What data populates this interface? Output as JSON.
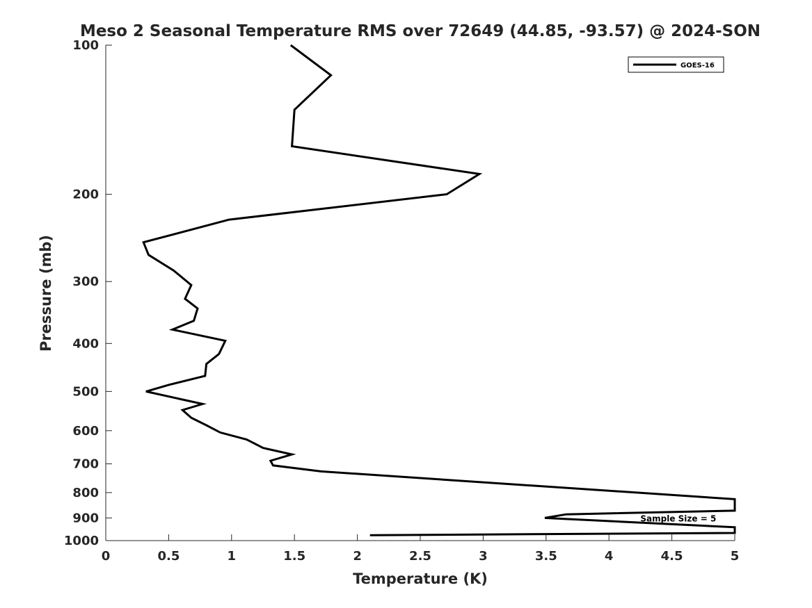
{
  "chart_data": {
    "type": "line",
    "title": "Meso 2 Seasonal Temperature RMS over 72649 (44.85, -93.57) @ 2024-SON",
    "xlabel": "Temperature (K)",
    "ylabel": "Pressure (mb)",
    "xlim": [
      0,
      5
    ],
    "ylim": [
      100,
      1000
    ],
    "y_scale": "log",
    "y_reversed": true,
    "grid": false,
    "legend_position": "top-right",
    "x_ticks": [
      0,
      0.5,
      1,
      1.5,
      2,
      2.5,
      3,
      3.5,
      4,
      4.5,
      5
    ],
    "x_tick_labels": [
      "0",
      "0.5",
      "1",
      "1.5",
      "2",
      "2.5",
      "3",
      "3.5",
      "4",
      "4.5",
      "5"
    ],
    "y_ticks": [
      100,
      200,
      300,
      400,
      500,
      600,
      700,
      800,
      900,
      1000
    ],
    "y_tick_labels": [
      "100",
      "200",
      "300",
      "400",
      "500",
      "600",
      "700",
      "800",
      "900",
      "1000"
    ],
    "series": [
      {
        "name": "GOES-16",
        "color": "#000000",
        "points": [
          [
            1.47,
            100
          ],
          [
            1.79,
            115
          ],
          [
            1.5,
            135
          ],
          [
            1.48,
            160
          ],
          [
            2.97,
            182
          ],
          [
            2.71,
            200
          ],
          [
            0.98,
            225
          ],
          [
            0.3,
            250
          ],
          [
            0.34,
            265
          ],
          [
            0.54,
            285
          ],
          [
            0.68,
            305
          ],
          [
            0.63,
            325
          ],
          [
            0.73,
            340
          ],
          [
            0.7,
            360
          ],
          [
            0.53,
            375
          ],
          [
            0.95,
            395
          ],
          [
            0.9,
            420
          ],
          [
            0.8,
            440
          ],
          [
            0.79,
            465
          ],
          [
            0.5,
            485
          ],
          [
            0.32,
            500
          ],
          [
            0.77,
            530
          ],
          [
            0.61,
            545
          ],
          [
            0.68,
            565
          ],
          [
            0.8,
            585
          ],
          [
            0.91,
            605
          ],
          [
            1.12,
            625
          ],
          [
            1.25,
            650
          ],
          [
            1.48,
            670
          ],
          [
            1.31,
            690
          ],
          [
            1.33,
            705
          ],
          [
            1.71,
            725
          ],
          [
            5.0,
            825
          ],
          [
            5.0,
            870
          ],
          [
            3.66,
            885
          ],
          [
            3.49,
            900
          ],
          [
            5.0,
            940
          ],
          [
            5.0,
            965
          ],
          [
            2.1,
            975
          ]
        ]
      }
    ],
    "annotations": [
      {
        "text": "Sample Size = 5",
        "x": 4.25,
        "y": 900
      }
    ]
  }
}
